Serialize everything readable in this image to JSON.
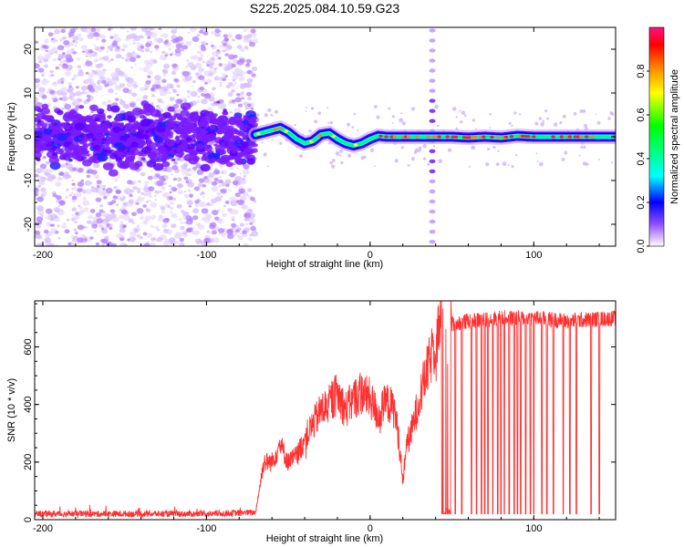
{
  "title": "S225.2025.084.10.59.G23",
  "chart_data": [
    {
      "type": "heatmap",
      "xlabel": "Height of straight line (km)",
      "ylabel": "Frequency (Hz)",
      "xlim": [
        -205,
        150
      ],
      "ylim": [
        -25,
        25
      ],
      "x_ticks": [
        -200,
        -100,
        0,
        100
      ],
      "y_ticks": [
        -20,
        -10,
        0,
        10,
        20
      ],
      "colorbar": {
        "label": "Normalized spectral amplitude",
        "range": [
          0,
          1
        ],
        "ticks": [
          0.0,
          0.2,
          0.4,
          0.6,
          0.8
        ],
        "colors": [
          "#ffffff",
          "#c090ff",
          "#7000ff",
          "#0000ff",
          "#00ffff",
          "#00ff00",
          "#ffff00",
          "#ff8000",
          "#ff0000",
          "#ff0080"
        ]
      },
      "ridge": {
        "x": [
          -70,
          -65,
          -60,
          -55,
          -50,
          -45,
          -40,
          -35,
          -30,
          -25,
          -20,
          -15,
          -10,
          -5,
          0,
          5,
          10,
          20,
          30,
          40,
          50,
          60,
          70,
          80,
          90,
          100,
          110,
          120,
          130,
          140,
          150
        ],
        "y": [
          0.5,
          1.0,
          1.5,
          2.0,
          1.0,
          -0.5,
          -1.5,
          -1.0,
          0.5,
          0.8,
          -0.5,
          -1.5,
          -2.0,
          -1.5,
          -0.5,
          0.2,
          0.0,
          0.0,
          0.0,
          0.0,
          0.0,
          -0.2,
          0.0,
          -0.2,
          0.2,
          0.0,
          0.0,
          0.0,
          0.0,
          0.0,
          0.0
        ]
      },
      "vertical_artifact_x": 38
    },
    {
      "type": "line",
      "xlabel": "Height of straight line (km)",
      "ylabel": "SNR (10 * v/v)",
      "xlim": [
        -205,
        150
      ],
      "ylim": [
        0,
        760
      ],
      "x_ticks": [
        -200,
        -100,
        0,
        100
      ],
      "y_ticks": [
        0,
        200,
        400,
        600
      ],
      "color": "#ff3030",
      "envelope": {
        "x": [
          -205,
          -100,
          -70,
          -65,
          -60,
          -55,
          -50,
          -45,
          -40,
          -35,
          -30,
          -25,
          -20,
          -15,
          -10,
          -5,
          0,
          5,
          10,
          15,
          18,
          20,
          22,
          25,
          30,
          35,
          40,
          43,
          45,
          48,
          50,
          60,
          80,
          100,
          120,
          150
        ],
        "y": [
          20,
          20,
          25,
          200,
          200,
          260,
          200,
          220,
          280,
          330,
          380,
          400,
          440,
          380,
          420,
          440,
          420,
          360,
          410,
          380,
          260,
          120,
          260,
          300,
          420,
          520,
          620,
          680,
          650,
          640,
          680,
          690,
          700,
          700,
          690,
          700
        ]
      },
      "dropouts_x": [
        44,
        45,
        46,
        47,
        48,
        49,
        52,
        56,
        62,
        65,
        68,
        70,
        72,
        75,
        78,
        80,
        82,
        85,
        88,
        90,
        92,
        95,
        98,
        100,
        105,
        108,
        112,
        118,
        122,
        126,
        135,
        140
      ]
    }
  ]
}
